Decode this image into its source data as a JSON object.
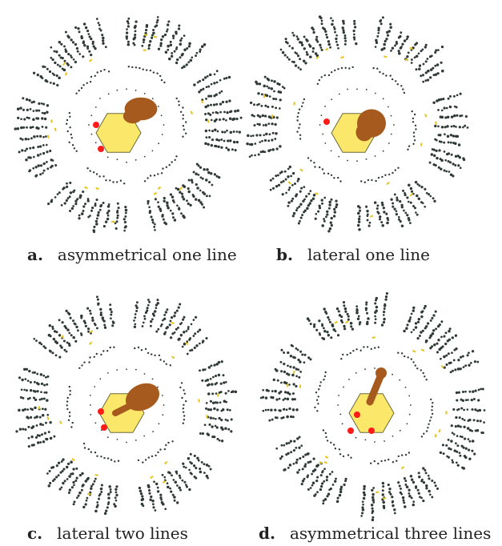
{
  "colors": {
    "dots": "#2f3a34",
    "hexagon": "#fbe86a",
    "hexagon_stroke": "#6a6a3a",
    "brown": "#a65a1e",
    "red": "#ff1a1a",
    "yellow_accent": "#e6c21a",
    "background": "#ffffff"
  },
  "panels": [
    {
      "id": "a",
      "letter": "a.",
      "label": "asymmetrical one line",
      "red_markers": 2
    },
    {
      "id": "b",
      "letter": "b.",
      "label": "lateral one line",
      "red_markers": 1
    },
    {
      "id": "c",
      "letter": "c.",
      "label": "lateral two lines",
      "red_markers": 2
    },
    {
      "id": "d",
      "letter": "d.",
      "label": "asymmetrical three lines",
      "red_markers": 3
    }
  ]
}
